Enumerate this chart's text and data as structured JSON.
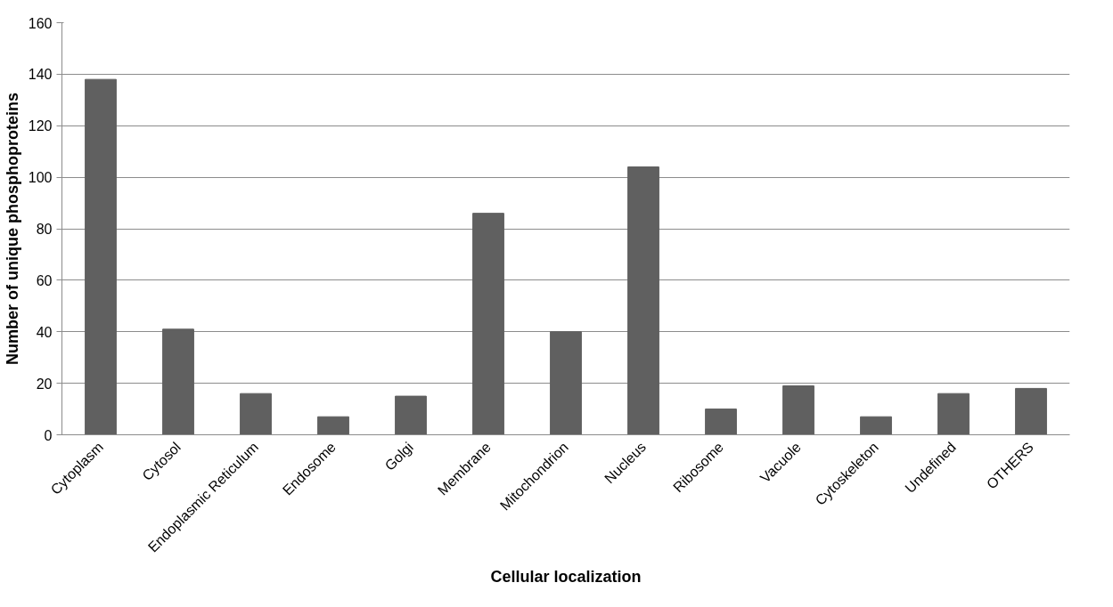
{
  "chart_data": {
    "type": "bar",
    "xlabel": "Cellular localization",
    "ylabel": "Number of unique phosphoproteins",
    "categories": [
      "Cytoplasm",
      "Cytosol",
      "Endoplasmic Reticulum",
      "Endosome",
      "Golgi",
      "Membrane",
      "Mitochondrion",
      "Nucleus",
      "Ribosome",
      "Vacuole",
      "Cytoskeleton",
      "Undefined",
      "OTHERS"
    ],
    "values": [
      138,
      41,
      16,
      7,
      15,
      86,
      40,
      104,
      10,
      19,
      7,
      16,
      18
    ],
    "color": "#606060",
    "ylim": [
      0,
      160
    ],
    "yticks": [
      0,
      20,
      40,
      60,
      80,
      100,
      120,
      140,
      160
    ],
    "grid": "y"
  }
}
